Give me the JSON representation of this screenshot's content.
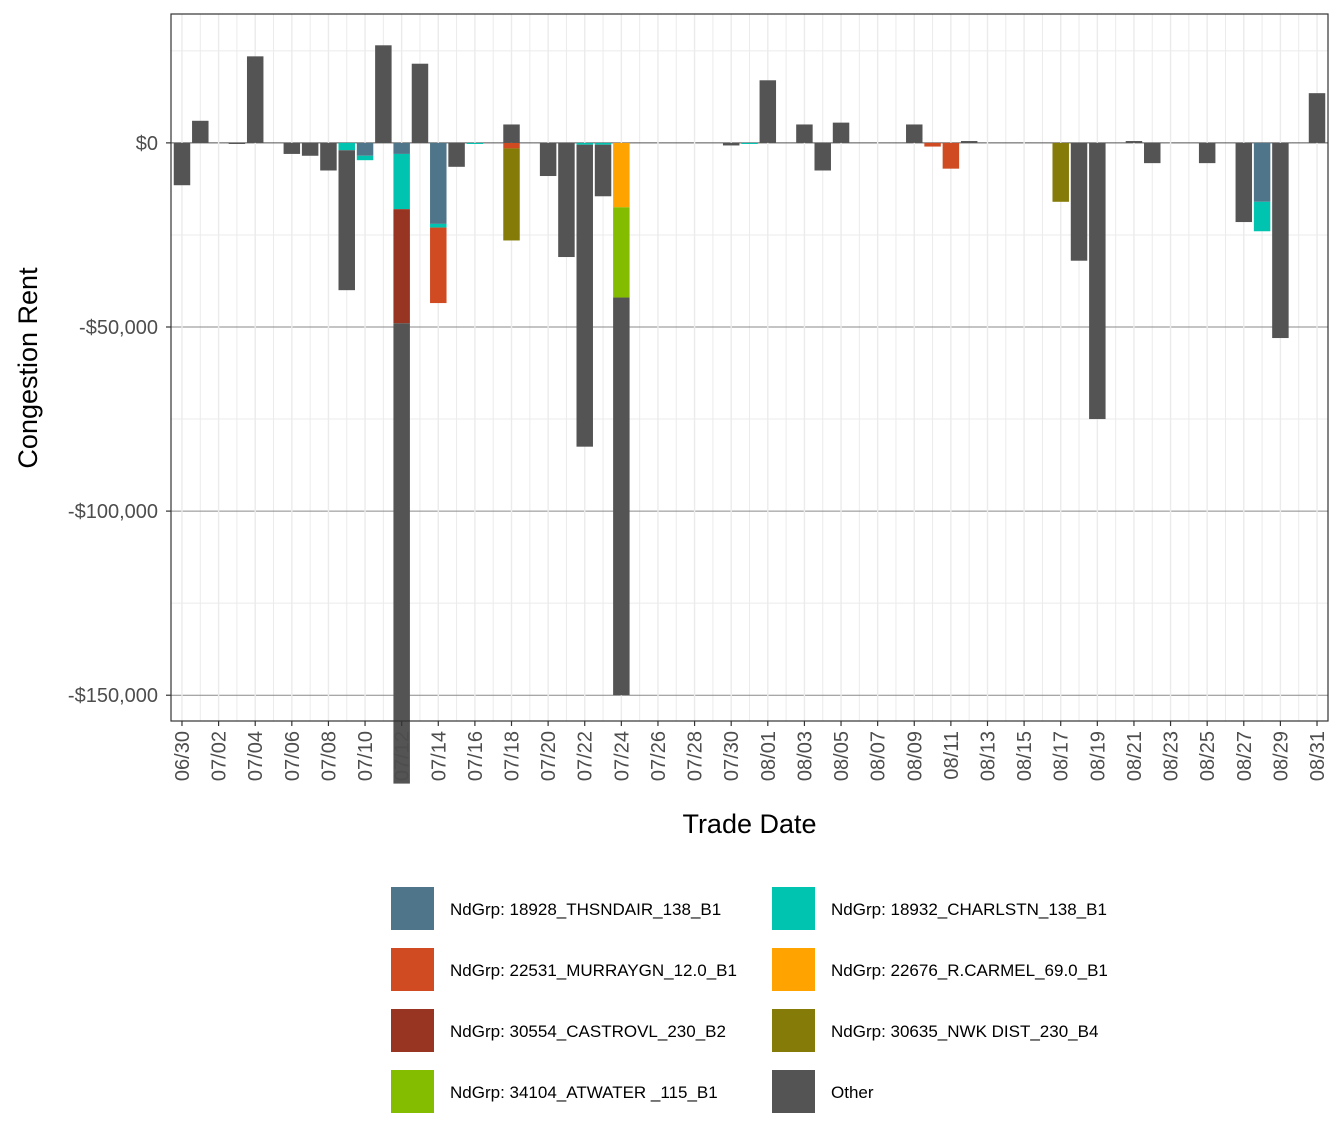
{
  "chart_data": {
    "type": "bar",
    "stacked": true,
    "title": "",
    "xlabel": "Trade Date",
    "ylabel": "Congestion Rent",
    "ylim": [
      -157000,
      35000
    ],
    "yticks": [
      0,
      -50000,
      -100000,
      -150000
    ],
    "ytick_labels": [
      "$0",
      "-$50,000",
      "-$100,000",
      "-$150,000"
    ],
    "grid": true,
    "legend_position": "bottom",
    "x_dates": [
      "06/30",
      "07/01",
      "07/02",
      "07/03",
      "07/04",
      "07/05",
      "07/06",
      "07/07",
      "07/08",
      "07/09",
      "07/10",
      "07/11",
      "07/12",
      "07/13",
      "07/14",
      "07/15",
      "07/16",
      "07/17",
      "07/18",
      "07/19",
      "07/20",
      "07/21",
      "07/22",
      "07/23",
      "07/24",
      "07/25",
      "07/26",
      "07/27",
      "07/28",
      "07/29",
      "07/30",
      "07/31",
      "08/01",
      "08/02",
      "08/03",
      "08/04",
      "08/05",
      "08/06",
      "08/07",
      "08/08",
      "08/09",
      "08/10",
      "08/11",
      "08/12",
      "08/13",
      "08/14",
      "08/15",
      "08/16",
      "08/17",
      "08/18",
      "08/19",
      "08/20",
      "08/21",
      "08/22",
      "08/23",
      "08/24",
      "08/25",
      "08/26",
      "08/27",
      "08/28",
      "08/29",
      "08/30",
      "08/31"
    ],
    "x_tick_labels": [
      "06/30",
      "07/02",
      "07/04",
      "07/06",
      "07/08",
      "07/10",
      "07/12",
      "07/14",
      "07/16",
      "07/18",
      "07/20",
      "07/22",
      "07/24",
      "07/26",
      "07/28",
      "07/30",
      "08/01",
      "08/03",
      "08/05",
      "08/07",
      "08/09",
      "08/11",
      "08/13",
      "08/15",
      "08/17",
      "08/19",
      "08/21",
      "08/23",
      "08/25",
      "08/27",
      "08/29",
      "08/31"
    ],
    "series": [
      {
        "name": "NdGrp: 18928_THSNDAIR_138_B1",
        "color": "#4E7589",
        "values": {
          "07/10": -3500,
          "07/14": -22000,
          "08/28": -16000,
          "07/12": -3000
        }
      },
      {
        "name": "NdGrp: 18932_CHARLSTN_138_B1",
        "color": "#00C4B0",
        "values": {
          "07/10": -1200,
          "07/09": -2000,
          "07/12": -15000,
          "07/14": -1000,
          "07/16": -300,
          "07/22": -500,
          "07/23": -500,
          "07/31": -300,
          "08/28": -8000
        }
      },
      {
        "name": "NdGrp: 22531_MURRAYGN_12.0_B1",
        "color": "#D04A22",
        "values": {
          "07/14": -20500,
          "07/18": -1500,
          "08/10": -1000,
          "08/11": -7000
        }
      },
      {
        "name": "NdGrp: 22676_R.CARMEL_69.0_B1",
        "color": "#FFA300",
        "values": {
          "07/24": -17500
        }
      },
      {
        "name": "NdGrp: 30554_CASTROVL_230_B2",
        "color": "#973522",
        "values": {
          "07/12": -31000
        }
      },
      {
        "name": "NdGrp: 30635_NWK DIST_230_B4",
        "color": "#857B08",
        "values": {
          "07/18": -25000,
          "08/17": -16000
        }
      },
      {
        "name": "NdGrp: 34104_ATWATER _115_B1",
        "color": "#84BD00",
        "values": {
          "07/24": -24500
        }
      },
      {
        "name": "Other",
        "color": "#545454",
        "values": {
          "06/30": -11500,
          "07/01": 6000,
          "07/03": -300,
          "07/04": 23500,
          "07/06": -3000,
          "07/07": -3500,
          "07/08": -7500,
          "07/09": -38000,
          "07/11": 26500,
          "07/12": -125000,
          "07/13": 21500,
          "07/15": -6500,
          "07/18": 5000,
          "07/20": -9000,
          "07/21": -31000,
          "07/22": -82000,
          "07/23": -14000,
          "07/24": -108000,
          "07/30": -700,
          "08/01": 17000,
          "08/03": 5000,
          "08/04": -7500,
          "08/05": 5500,
          "08/09": 5000,
          "08/12": 500,
          "08/18": -32000,
          "08/19": -75000,
          "08/21": 500,
          "08/22": -5500,
          "08/25": -5500,
          "08/27": -21500,
          "08/29": -53000,
          "08/31": 13500
        }
      }
    ],
    "legend_order": [
      "NdGrp: 18928_THSNDAIR_138_B1",
      "NdGrp: 18932_CHARLSTN_138_B1",
      "NdGrp: 22531_MURRAYGN_12.0_B1",
      "NdGrp: 22676_R.CARMEL_69.0_B1",
      "NdGrp: 30554_CASTROVL_230_B2",
      "NdGrp: 30635_NWK DIST_230_B4",
      "NdGrp: 34104_ATWATER _115_B1",
      "Other"
    ]
  }
}
